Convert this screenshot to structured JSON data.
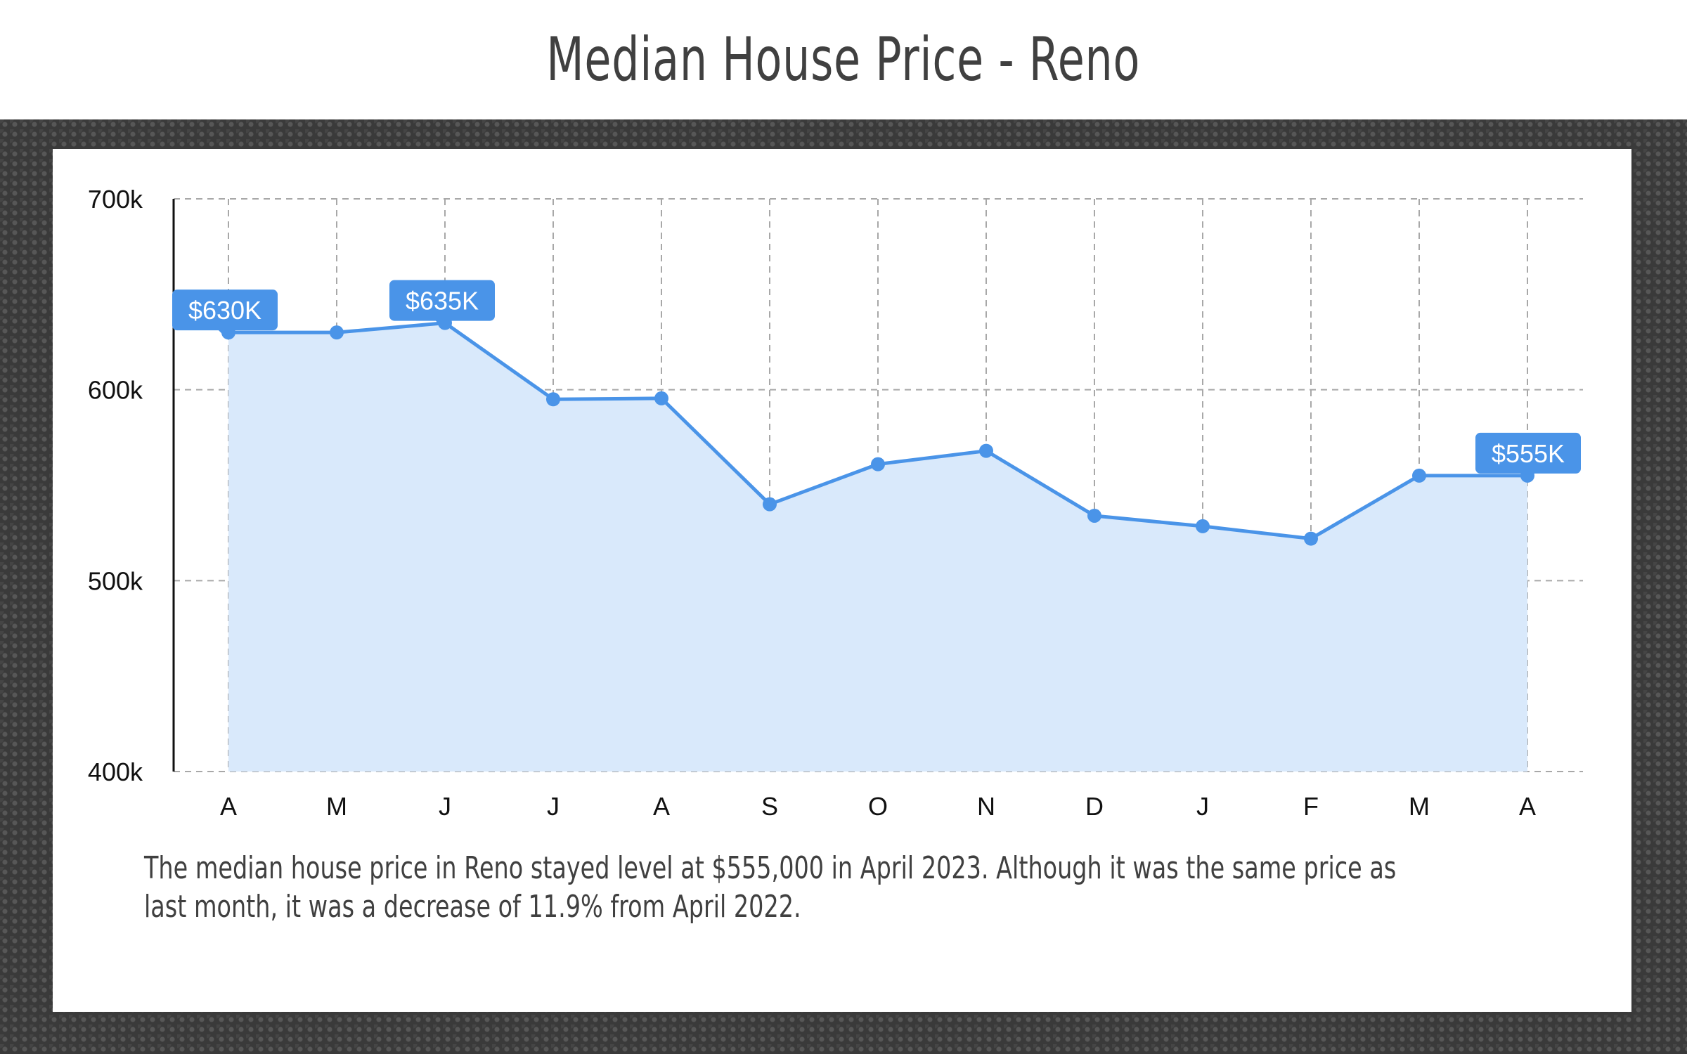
{
  "title": "Median House Price - Reno",
  "description": {
    "line1": "The median house price in Reno stayed level at $555,000 in April 2023.  Although it was the same price as",
    "line2": "last month, it was a decrease of 11.9% from April 2022."
  },
  "colors": {
    "line": "#4a94e8",
    "fill": "#d9e9fb",
    "label_bg": "#4a94e8",
    "grid": "#a8a8a8",
    "title": "#404040",
    "frame": "#3a3a3a"
  },
  "chart_data": {
    "type": "area",
    "title": "Median House Price - Reno",
    "categories": [
      "A",
      "M",
      "J",
      "J",
      "A",
      "S",
      "O",
      "N",
      "D",
      "J",
      "F",
      "M",
      "A"
    ],
    "series": [
      {
        "values": [
          630000,
          630000,
          635000,
          595000,
          595500,
          540000,
          561000,
          568000,
          534000,
          528500,
          522000,
          555000,
          555000
        ]
      }
    ],
    "y_ticks": [
      "400k",
      "500k",
      "600k",
      "700k"
    ],
    "ylim": [
      400000,
      700000
    ],
    "grid": true,
    "data_labels": [
      {
        "index": 0,
        "text": "$630K"
      },
      {
        "index": 2,
        "text": "$635K"
      },
      {
        "index": 12,
        "text": "$555K"
      }
    ]
  }
}
